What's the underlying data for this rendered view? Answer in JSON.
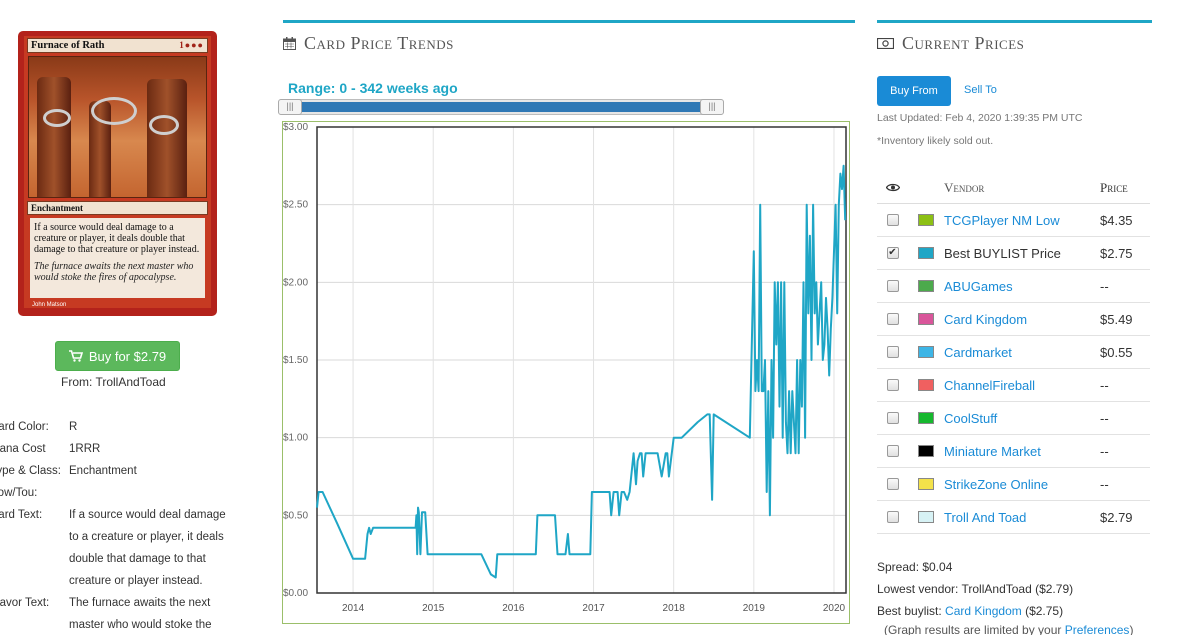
{
  "card": {
    "name": "Furnace of Rath",
    "mana_symbols": "1●●●",
    "type_line": "Enchantment",
    "rules_text": "If a source would deal damage to a creature or player, it deals double that damage to that creature or player instead.",
    "flavor_text": "The furnace awaits the next master who would stoke the fires of apocalypse.",
    "artist": "John Matson"
  },
  "buy": {
    "label": "Buy for $2.79",
    "from": "From: TrollAndToad"
  },
  "attributes": [
    {
      "key": "Card Color:",
      "value": "R"
    },
    {
      "key": "Mana Cost",
      "value": "1RRR"
    },
    {
      "key": "Type & Class:",
      "value": "Enchantment"
    },
    {
      "key": "Pow/Tou:",
      "value": ""
    },
    {
      "key": "Card Text:",
      "value": "If a source would deal damage to a creature or player, it deals double that damage to that creature or player instead."
    },
    {
      "key": "Flavor Text:",
      "value": "The furnace awaits the next master who would stoke the"
    }
  ],
  "trends": {
    "title": "Card Price Trends",
    "range_label": "Range: 0 - 342 weeks ago"
  },
  "chart_data": {
    "type": "line",
    "title": "",
    "xlabel": "",
    "ylabel": "",
    "x_ticks": [
      "2014",
      "2015",
      "2016",
      "2017",
      "2018",
      "2019",
      "2020"
    ],
    "y_ticks": [
      "$0.00",
      "$0.50",
      "$1.00",
      "$1.50",
      "$2.00",
      "$2.50",
      "$3.00"
    ],
    "xlim": [
      2013.55,
      2020.15
    ],
    "ylim": [
      0,
      3
    ],
    "series": [
      {
        "name": "Best BUYLIST Price",
        "color": "#1fa6c6",
        "x": [
          2013.55,
          2013.57,
          2013.6,
          2013.62,
          2013.8,
          2014.0,
          2014.15,
          2014.18,
          2014.2,
          2014.22,
          2014.25,
          2014.5,
          2014.78,
          2014.79,
          2014.8,
          2014.81,
          2014.82,
          2014.84,
          2014.86,
          2014.9,
          2014.93,
          2015.0,
          2015.3,
          2015.5,
          2015.6,
          2015.72,
          2015.78,
          2015.8,
          2015.83,
          2015.9,
          2016.0,
          2016.1,
          2016.28,
          2016.3,
          2016.5,
          2016.52,
          2016.55,
          2016.62,
          2016.65,
          2016.68,
          2016.7,
          2016.75,
          2016.96,
          2016.98,
          2017.0,
          2017.15,
          2017.2,
          2017.22,
          2017.25,
          2017.3,
          2017.32,
          2017.35,
          2017.38,
          2017.42,
          2017.45,
          2017.5,
          2017.53,
          2017.55,
          2017.58,
          2017.6,
          2017.62,
          2017.65,
          2017.7,
          2017.75,
          2017.8,
          2017.85,
          2017.9,
          2017.92,
          2017.94,
          2018.0,
          2018.1,
          2018.3,
          2018.42,
          2018.45,
          2018.48,
          2018.5,
          2018.95,
          2019.0,
          2019.02,
          2019.04,
          2019.06,
          2019.08,
          2019.1,
          2019.12,
          2019.14,
          2019.16,
          2019.18,
          2019.2,
          2019.22,
          2019.24,
          2019.26,
          2019.28,
          2019.3,
          2019.32,
          2019.34,
          2019.36,
          2019.38,
          2019.4,
          2019.42,
          2019.44,
          2019.46,
          2019.48,
          2019.5,
          2019.52,
          2019.54,
          2019.56,
          2019.58,
          2019.6,
          2019.62,
          2019.64,
          2019.66,
          2019.68,
          2019.7,
          2019.72,
          2019.74,
          2019.76,
          2019.78,
          2019.8,
          2019.82,
          2019.84,
          2019.86,
          2019.88,
          2019.9,
          2019.92,
          2019.94,
          2019.96,
          2019.98,
          2020.0,
          2020.02,
          2020.04,
          2020.06,
          2020.08,
          2020.1,
          2020.12,
          2020.14
        ],
        "y": [
          0.55,
          0.65,
          0.65,
          0.65,
          0.45,
          0.22,
          0.22,
          0.38,
          0.42,
          0.38,
          0.42,
          0.42,
          0.42,
          0.5,
          0.25,
          0.55,
          0.52,
          0.25,
          0.52,
          0.52,
          0.25,
          0.25,
          0.25,
          0.25,
          0.25,
          0.12,
          0.1,
          0.25,
          0.25,
          0.25,
          0.25,
          0.25,
          0.25,
          0.5,
          0.5,
          0.5,
          0.25,
          0.25,
          0.25,
          0.38,
          0.25,
          0.25,
          0.25,
          0.65,
          0.65,
          0.65,
          0.65,
          0.5,
          0.65,
          0.65,
          0.5,
          0.65,
          0.65,
          0.6,
          0.65,
          0.9,
          0.7,
          0.85,
          0.9,
          0.9,
          0.75,
          0.9,
          0.9,
          0.9,
          0.9,
          0.75,
          0.9,
          0.9,
          0.75,
          1.0,
          1.0,
          1.1,
          1.15,
          1.15,
          0.6,
          1.15,
          1.0,
          2.2,
          1.3,
          1.5,
          1.3,
          2.5,
          1.3,
          1.3,
          1.5,
          0.65,
          1.3,
          0.5,
          1.5,
          1.0,
          2.0,
          1.6,
          2.0,
          1.2,
          2.0,
          1.0,
          2.0,
          1.1,
          0.9,
          1.3,
          0.9,
          1.3,
          1.1,
          0.9,
          1.5,
          0.9,
          1.5,
          1.2,
          2.0,
          1.0,
          2.5,
          1.8,
          2.3,
          1.5,
          2.5,
          1.8,
          2.0,
          1.6,
          1.8,
          2.0,
          1.5,
          1.6,
          1.9,
          1.7,
          1.4,
          1.7,
          1.9,
          2.2,
          2.5,
          1.8,
          2.5,
          2.7,
          2.6,
          2.75,
          2.4
        ]
      }
    ]
  },
  "current_prices": {
    "title": "Current Prices",
    "tab_buy": "Buy From",
    "tab_sell": "Sell To",
    "last_updated": "Last Updated: Feb 4, 2020 1:39:35 PM UTC",
    "inventory_note": "*Inventory likely sold out.",
    "col_vendor": "Vendor",
    "col_price": "Price",
    "vendors": [
      {
        "name": "TCGPlayer NM Low",
        "price": "$4.35",
        "color": "#8cc014",
        "checked": false,
        "link": true
      },
      {
        "name": "Best BUYLIST Price",
        "price": "$2.75",
        "color": "#1fa6c6",
        "checked": true,
        "link": false
      },
      {
        "name": "ABUGames",
        "price": "--",
        "color": "#4caa4c",
        "checked": false,
        "link": true
      },
      {
        "name": "Card Kingdom",
        "price": "$5.49",
        "color": "#d9559a",
        "checked": false,
        "link": true
      },
      {
        "name": "Cardmarket",
        "price": "$0.55",
        "color": "#3db5e6",
        "checked": false,
        "link": true
      },
      {
        "name": "ChannelFireball",
        "price": "--",
        "color": "#f06060",
        "checked": false,
        "link": true
      },
      {
        "name": "CoolStuff",
        "price": "--",
        "color": "#16b82e",
        "checked": false,
        "link": true
      },
      {
        "name": "Miniature Market",
        "price": "--",
        "color": "#000000",
        "checked": false,
        "link": true
      },
      {
        "name": "StrikeZone Online",
        "price": "--",
        "color": "#f3e24a",
        "checked": false,
        "link": true
      },
      {
        "name": "Troll And Toad",
        "price": "$2.79",
        "color": "#d7f2f5",
        "checked": false,
        "link": true
      }
    ],
    "spread": "Spread: $0.04",
    "lowest_vendor": "Lowest vendor: TrollAndToad ($2.79)",
    "best_buylist_prefix": "Best buylist: ",
    "best_buylist_vendor": "Card Kingdom",
    "best_buylist_suffix": " ($2.75)",
    "note_prefix": "(Graph results are limited by your ",
    "note_link": "Preferences",
    "note_suffix": ")"
  },
  "colors": {
    "accent": "#1fa6c6",
    "link": "#1a8bd6",
    "buy_green": "#5cb85c"
  }
}
